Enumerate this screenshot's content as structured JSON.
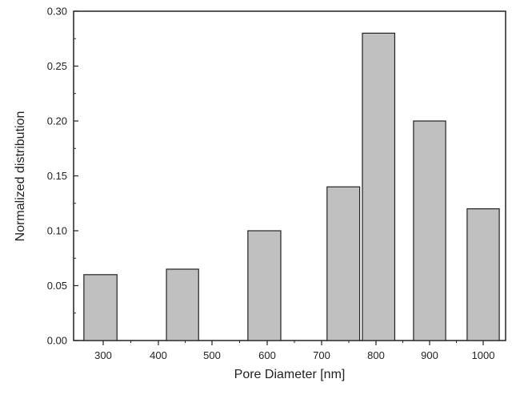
{
  "chart_data": {
    "type": "bar",
    "xlabel": "Pore Diameter [nm]",
    "ylabel": "Normalized distribution",
    "x_ticks": [
      300,
      400,
      500,
      600,
      700,
      800,
      900,
      1000
    ],
    "y_ticks": [
      "0.00",
      "0.05",
      "0.10",
      "0.15",
      "0.20",
      "0.25",
      "0.30"
    ],
    "ylim": [
      0,
      0.3
    ],
    "xlim": [
      250,
      1050
    ],
    "bars": [
      {
        "x_start": 265,
        "x_end": 325,
        "value": 0.06
      },
      {
        "x_start": 415,
        "x_end": 475,
        "value": 0.065
      },
      {
        "x_start": 565,
        "x_end": 625,
        "value": 0.1
      },
      {
        "x_start": 710,
        "x_end": 770,
        "value": 0.14
      },
      {
        "x_start": 775,
        "x_end": 835,
        "value": 0.28
      },
      {
        "x_start": 870,
        "x_end": 930,
        "value": 0.2
      },
      {
        "x_start": 970,
        "x_end": 1030,
        "value": 0.12
      }
    ],
    "bar_color": "#c0c0c0",
    "bar_edge_color": "#222222",
    "grid": false,
    "legend": "none"
  }
}
